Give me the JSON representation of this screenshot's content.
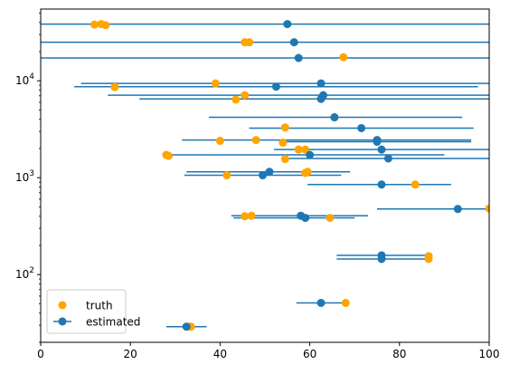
{
  "chart_data": {
    "type": "scatter",
    "title": "",
    "xlabel": "",
    "ylabel": "",
    "xlim": [
      0,
      100
    ],
    "ylim": [
      20,
      55000
    ],
    "yscale": "log",
    "grid": false,
    "legend_position": "lower-left",
    "xticks": [
      0,
      20,
      40,
      60,
      80,
      100
    ],
    "xtick_labels": [
      "0",
      "20",
      "40",
      "60",
      "80",
      "100"
    ],
    "yticks": [
      {
        "value": 100,
        "base": "10",
        "exp": "2"
      },
      {
        "value": 1000,
        "base": "10",
        "exp": "3"
      },
      {
        "value": 10000,
        "base": "10",
        "exp": "4"
      }
    ],
    "colors": {
      "truth": "#ffa500",
      "estimated": "#1f77b4"
    },
    "series": [
      {
        "name": "truth",
        "kind": "scatter",
        "points": [
          {
            "x": 12.0,
            "y": 38000
          },
          {
            "x": 13.5,
            "y": 38500
          },
          {
            "x": 14.5,
            "y": 37500
          },
          {
            "x": 45.5,
            "y": 25000
          },
          {
            "x": 46.5,
            "y": 25000
          },
          {
            "x": 67.5,
            "y": 17500
          },
          {
            "x": 16.5,
            "y": 8600
          },
          {
            "x": 39.0,
            "y": 9400
          },
          {
            "x": 45.5,
            "y": 7100
          },
          {
            "x": 43.5,
            "y": 6400
          },
          {
            "x": 65.5,
            "y": 4200
          },
          {
            "x": 54.5,
            "y": 3300
          },
          {
            "x": 40.0,
            "y": 2400
          },
          {
            "x": 48.0,
            "y": 2450
          },
          {
            "x": 54.0,
            "y": 2300
          },
          {
            "x": 57.5,
            "y": 1950
          },
          {
            "x": 59.0,
            "y": 1950
          },
          {
            "x": 28.0,
            "y": 1720
          },
          {
            "x": 28.5,
            "y": 1680
          },
          {
            "x": 54.5,
            "y": 1560
          },
          {
            "x": 59.5,
            "y": 1150
          },
          {
            "x": 59.0,
            "y": 1120
          },
          {
            "x": 41.5,
            "y": 1060
          },
          {
            "x": 83.5,
            "y": 850
          },
          {
            "x": 45.5,
            "y": 400
          },
          {
            "x": 47.0,
            "y": 405
          },
          {
            "x": 64.5,
            "y": 385
          },
          {
            "x": 100.0,
            "y": 480
          },
          {
            "x": 86.5,
            "y": 155
          },
          {
            "x": 86.5,
            "y": 145
          },
          {
            "x": 68.0,
            "y": 51
          },
          {
            "x": 33.0,
            "y": 29
          },
          {
            "x": 33.5,
            "y": 29
          }
        ]
      },
      {
        "name": "estimated",
        "kind": "errorbar",
        "points": [
          {
            "x": 55.0,
            "y": 38500,
            "xerr": [
              0,
              100
            ]
          },
          {
            "x": 56.5,
            "y": 25000,
            "xerr": [
              0,
              100
            ]
          },
          {
            "x": 57.5,
            "y": 17200,
            "xerr": [
              0,
              100
            ]
          },
          {
            "x": 62.5,
            "y": 9400,
            "xerr": [
              9,
              100
            ]
          },
          {
            "x": 52.5,
            "y": 8700,
            "xerr": [
              7.5,
              97.5
            ]
          },
          {
            "x": 63.0,
            "y": 7100,
            "xerr": [
              15,
              100
            ]
          },
          {
            "x": 62.5,
            "y": 6500,
            "xerr": [
              22,
              100
            ]
          },
          {
            "x": 65.5,
            "y": 4200,
            "xerr": [
              37.5,
              94
            ]
          },
          {
            "x": 71.5,
            "y": 3250,
            "xerr": [
              46.5,
              96.5
            ]
          },
          {
            "x": 75.0,
            "y": 2450,
            "xerr": [
              31.5,
              96
            ]
          },
          {
            "x": 75.0,
            "y": 2350,
            "xerr": [
              53.5,
              96
            ]
          },
          {
            "x": 76.0,
            "y": 1950,
            "xerr": [
              52,
              100
            ]
          },
          {
            "x": 60.0,
            "y": 1720,
            "xerr": [
              27.5,
              90
            ]
          },
          {
            "x": 77.5,
            "y": 1580,
            "xerr": [
              55,
              100
            ]
          },
          {
            "x": 51.0,
            "y": 1150,
            "xerr": [
              32.5,
              69
            ]
          },
          {
            "x": 49.5,
            "y": 1060,
            "xerr": [
              32,
              67
            ]
          },
          {
            "x": 76.0,
            "y": 850,
            "xerr": [
              59.5,
              91.5
            ]
          },
          {
            "x": 93.0,
            "y": 475,
            "xerr": [
              75,
              100
            ]
          },
          {
            "x": 58.0,
            "y": 405,
            "xerr": [
              42.5,
              73
            ]
          },
          {
            "x": 59.0,
            "y": 385,
            "xerr": [
              43,
              70
            ]
          },
          {
            "x": 76.0,
            "y": 158,
            "xerr": [
              66,
              86
            ]
          },
          {
            "x": 76.0,
            "y": 145,
            "xerr": [
              66,
              87
            ]
          },
          {
            "x": 62.5,
            "y": 51,
            "xerr": [
              57,
              68
            ]
          },
          {
            "x": 32.5,
            "y": 29,
            "xerr": [
              28,
              37
            ]
          }
        ]
      }
    ]
  }
}
